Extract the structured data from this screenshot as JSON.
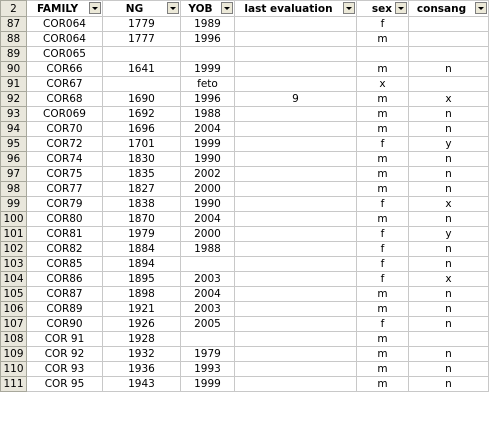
{
  "header": {
    "row_number": "2",
    "columns": [
      "FAMILY",
      "NG",
      "YOB",
      "last evaluation",
      "sex",
      "consang"
    ]
  },
  "rows": [
    {
      "n": "87",
      "family": "COR064",
      "ng": "1779",
      "yob": "1989",
      "last": "",
      "sex": "f",
      "consang": ""
    },
    {
      "n": "88",
      "family": "COR064",
      "ng": "1777",
      "yob": "1996",
      "last": "",
      "sex": "m",
      "consang": ""
    },
    {
      "n": "89",
      "family": "COR065",
      "ng": "",
      "yob": "",
      "last": "",
      "sex": "",
      "consang": ""
    },
    {
      "n": "90",
      "family": "COR66",
      "ng": "1641",
      "yob": "1999",
      "last": "",
      "sex": "m",
      "consang": "n"
    },
    {
      "n": "91",
      "family": "COR67",
      "ng": "",
      "yob": "feto",
      "last": "",
      "sex": "x",
      "consang": ""
    },
    {
      "n": "92",
      "family": "COR68",
      "ng": "1690",
      "yob": "1996",
      "last": "9",
      "sex": "m",
      "consang": "x"
    },
    {
      "n": "93",
      "family": "COR069",
      "ng": "1692",
      "yob": "1988",
      "last": "",
      "sex": "m",
      "consang": "n"
    },
    {
      "n": "94",
      "family": "COR70",
      "ng": "1696",
      "yob": "2004",
      "last": "",
      "sex": "m",
      "consang": "n"
    },
    {
      "n": "95",
      "family": "COR72",
      "ng": "1701",
      "yob": "1999",
      "last": "",
      "sex": "f",
      "consang": "y"
    },
    {
      "n": "96",
      "family": "COR74",
      "ng": "1830",
      "yob": "1990",
      "last": "",
      "sex": "m",
      "consang": "n"
    },
    {
      "n": "97",
      "family": "COR75",
      "ng": "1835",
      "yob": "2002",
      "last": "",
      "sex": "m",
      "consang": "n"
    },
    {
      "n": "98",
      "family": "COR77",
      "ng": "1827",
      "yob": "2000",
      "last": "",
      "sex": "m",
      "consang": "n"
    },
    {
      "n": "99",
      "family": "COR79",
      "ng": "1838",
      "yob": "1990",
      "last": "",
      "sex": "f",
      "consang": "x"
    },
    {
      "n": "100",
      "family": "COR80",
      "ng": "1870",
      "yob": "2004",
      "last": "",
      "sex": "m",
      "consang": "n"
    },
    {
      "n": "101",
      "family": "COR81",
      "ng": "1979",
      "yob": "2000",
      "last": "",
      "sex": "f",
      "consang": "y"
    },
    {
      "n": "102",
      "family": "COR82",
      "ng": "1884",
      "yob": "1988",
      "last": "",
      "sex": "f",
      "consang": "n"
    },
    {
      "n": "103",
      "family": "COR85",
      "ng": "1894",
      "yob": "",
      "last": "",
      "sex": "f",
      "consang": "n"
    },
    {
      "n": "104",
      "family": "COR86",
      "ng": "1895",
      "yob": "2003",
      "last": "",
      "sex": "f",
      "consang": "x"
    },
    {
      "n": "105",
      "family": "COR87",
      "ng": "1898",
      "yob": "2004",
      "last": "",
      "sex": "m",
      "consang": "n"
    },
    {
      "n": "106",
      "family": "COR89",
      "ng": "1921",
      "yob": "2003",
      "last": "",
      "sex": "m",
      "consang": "n"
    },
    {
      "n": "107",
      "family": "COR90",
      "ng": "1926",
      "yob": "2005",
      "last": "",
      "sex": "f",
      "consang": "n"
    },
    {
      "n": "108",
      "family": "COR 91",
      "ng": "1928",
      "yob": "",
      "last": "",
      "sex": "m",
      "consang": ""
    },
    {
      "n": "109",
      "family": "COR 92",
      "ng": "1932",
      "yob": "1979",
      "last": "",
      "sex": "m",
      "consang": "n"
    },
    {
      "n": "110",
      "family": "COR 93",
      "ng": "1936",
      "yob": "1993",
      "last": "",
      "sex": "m",
      "consang": "n"
    },
    {
      "n": "111",
      "family": "COR 95",
      "ng": "1943",
      "yob": "1999",
      "last": "",
      "sex": "m",
      "consang": "n"
    }
  ]
}
